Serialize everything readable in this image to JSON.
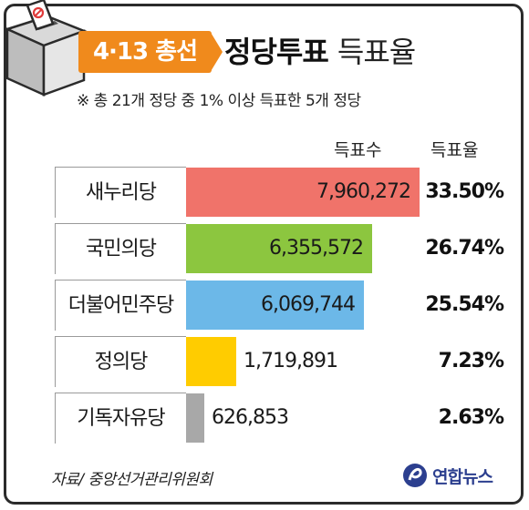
{
  "header": {
    "badge": "4·13 총선",
    "title_bold": "정당투표",
    "title_light": "득표율",
    "note": "※ 총 21개 정당 중 1% 이상 득표한 5개 정당"
  },
  "columns": {
    "votes": "득표수",
    "rate": "득표율"
  },
  "chart_data": {
    "type": "bar",
    "orientation": "horizontal",
    "categories": [
      "새누리당",
      "국민의당",
      "더불어민주당",
      "정의당",
      "기독자유당"
    ],
    "values": [
      7960272,
      6355572,
      6069744,
      1719891,
      626853
    ],
    "value_labels": [
      "7,960,272",
      "6,355,572",
      "6,069,744",
      "1,719,891",
      "626,853"
    ],
    "rates": [
      "33.50%",
      "26.74%",
      "25.54%",
      "7.23%",
      "2.63%"
    ],
    "colors": [
      "#f0736a",
      "#8cc63f",
      "#6cb8e8",
      "#ffcc00",
      "#a8a8a8"
    ],
    "grid": false
  },
  "footer": {
    "source": "자료/ 중앙선거관리위원회",
    "logo": "연합뉴스"
  }
}
